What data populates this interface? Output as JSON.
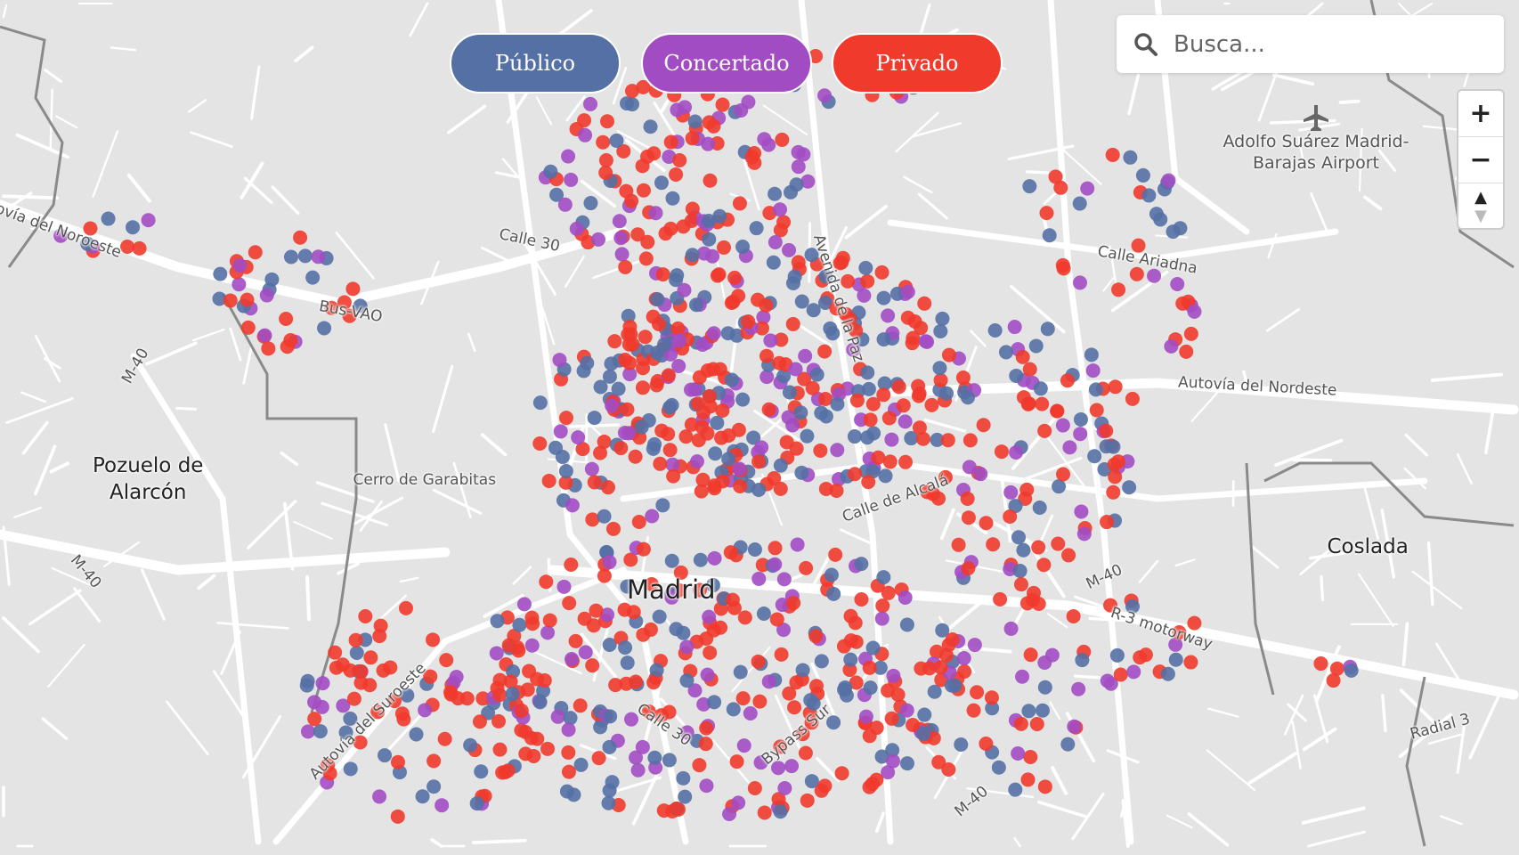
{
  "filters": [
    {
      "label": "Público",
      "color": "#5470a5"
    },
    {
      "label": "Concertado",
      "color": "#a24cc3"
    },
    {
      "label": "Privado",
      "color": "#ef3a2c"
    }
  ],
  "search": {
    "placeholder": "Busca...",
    "icon": "search-icon"
  },
  "zoom_controls": {
    "zoom_in": "+",
    "zoom_out": "−",
    "compass": "▲"
  },
  "map": {
    "labels": {
      "madrid": "Madrid",
      "pozuelo": "Pozuelo de\nAlarcón",
      "coslada": "Coslada",
      "cerro": "Cerro de Garabitas",
      "airport": "Adolfo Suárez Madrid-\nBarajas Airport",
      "calle30_n": "Calle 30",
      "busvao": "Bus-VAO",
      "m40_w1": "M-40",
      "m40_w2": "M-40",
      "noroeste": "ovía del Noroeste",
      "avpaz": "Avenida de la Paz",
      "ariadna": "Calle Ariadna",
      "nordeste": "Autovía del Nordeste",
      "alcala": "Calle de Alcalá",
      "m40_e": "M-40",
      "r3": "R-3 motorway",
      "radial3": "Radial 3",
      "suroeste": "Autovía del Suroeste",
      "calle30_s": "Calle 30",
      "bypass": "Bypass Sur",
      "m40_s": "M-40"
    },
    "colors": {
      "land": "#e4e4e4",
      "road": "#ffffff",
      "boundary": "#8a8a8a"
    }
  }
}
